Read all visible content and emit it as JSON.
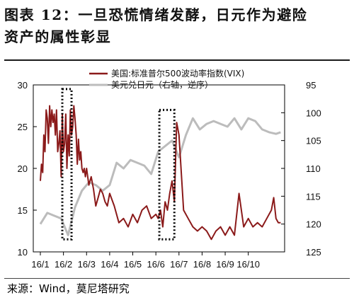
{
  "title": {
    "line1": "图表 12：一旦恐慌情绪发酵，日元作为避险",
    "line2": "资产的属性彰显"
  },
  "source": "来源：Wind，莫尼塔研究",
  "chart_data": {
    "type": "line",
    "x_tick_labels": [
      "16/1",
      "16/2",
      "16/3",
      "16/4",
      "16/5",
      "16/6",
      "16/7",
      "16/8",
      "16/9",
      "16/10"
    ],
    "y_left": {
      "ticks": [
        10,
        15,
        20,
        25,
        30
      ],
      "range": [
        10,
        30
      ]
    },
    "y_right": {
      "ticks": [
        95,
        100,
        105,
        110,
        115,
        120,
        125
      ],
      "range": [
        95,
        125
      ],
      "reversed": true
    },
    "series": [
      {
        "name": "美国:标准普尔500波动率指数(VIX)",
        "axis": "left",
        "color": "#8b1a1a",
        "x": [
          0,
          0.05,
          0.1,
          0.15,
          0.2,
          0.25,
          0.3,
          0.35,
          0.4,
          0.45,
          0.5,
          0.55,
          0.6,
          0.65,
          0.7,
          0.75,
          0.8,
          0.85,
          0.9,
          0.95,
          1,
          1.05,
          1.1,
          1.15,
          1.2,
          1.25,
          1.3,
          1.35,
          1.4,
          1.45,
          1.5,
          1.55,
          1.6,
          1.65,
          1.7,
          1.75,
          1.8,
          1.85,
          1.9,
          1.95,
          2,
          2.1,
          2.2,
          2.3,
          2.4,
          2.5,
          2.6,
          2.7,
          2.8,
          2.9,
          3,
          3.2,
          3.4,
          3.6,
          3.8,
          4,
          4.2,
          4.4,
          4.6,
          4.8,
          5,
          5.1,
          5.2,
          5.3,
          5.4,
          5.5,
          5.6,
          5.7,
          5.8,
          5.9,
          6,
          6.2,
          6.4,
          6.6,
          6.8,
          7,
          7.2,
          7.4,
          7.6,
          7.8,
          8,
          8.2,
          8.4,
          8.6,
          8.8,
          9,
          9.2,
          9.4,
          9.6,
          9.8,
          10,
          10.1,
          10.2,
          10.3,
          10.4
        ],
        "y": [
          18.5,
          20.5,
          19.5,
          24,
          22,
          27,
          26,
          23,
          27.5,
          25,
          27,
          25.5,
          26.5,
          24,
          27,
          22,
          23,
          24.5,
          19,
          26.5,
          22,
          23,
          26.5,
          20,
          24,
          21.5,
          27,
          24,
          25,
          27.5,
          26,
          24,
          20.5,
          23.5,
          21,
          22,
          20,
          19.5,
          20,
          19,
          20,
          18,
          19,
          17.5,
          15.5,
          16.5,
          17.5,
          17,
          16,
          15.5,
          17,
          15.5,
          13.5,
          14,
          13,
          14.5,
          13.5,
          15,
          15.5,
          14,
          14.5,
          14,
          15,
          13,
          16,
          15,
          17,
          18.5,
          16,
          25.5,
          24,
          15,
          14,
          13,
          12.5,
          13,
          12.5,
          11.5,
          12.5,
          13,
          12,
          13,
          12,
          17,
          13,
          14,
          13,
          13.5,
          13,
          14,
          15,
          16.5,
          14,
          13.5,
          13.5
        ],
        "y_approx_peaks": {
          "16/2": 28.5,
          "16/6": 26
        }
      },
      {
        "name": "美元兑日元（右轴，逆序）",
        "axis": "right",
        "color": "#bcbcbc",
        "x": [
          0,
          0.3,
          0.6,
          0.9,
          1.2,
          1.5,
          1.8,
          2.1,
          2.4,
          2.7,
          3,
          3.3,
          3.6,
          3.9,
          4.2,
          4.5,
          4.8,
          5.1,
          5.4,
          5.7,
          6,
          6.3,
          6.6,
          6.9,
          7.2,
          7.5,
          7.8,
          8.1,
          8.4,
          8.7,
          9,
          9.3,
          9.6,
          9.9,
          10.2,
          10.4
        ],
        "y": [
          120,
          118,
          118.5,
          119,
          122,
          117,
          114,
          112.5,
          113,
          114,
          113,
          109,
          110,
          108.5,
          109,
          109.5,
          111,
          107,
          106,
          105,
          108,
          104,
          101,
          103,
          102,
          101.5,
          102,
          102.5,
          101,
          103,
          101,
          101.5,
          103,
          103.5,
          103.8,
          103.5
        ]
      }
    ],
    "annotations": [
      {
        "type": "dotted-box",
        "x_from": 0.95,
        "x_to": 1.35,
        "y_from_left": 11.5,
        "y_to_left": 29.5
      },
      {
        "type": "dotted-box",
        "x_from": 5.15,
        "x_to": 5.8,
        "y_from_left": 11.5,
        "y_to_left": 27.0
      }
    ],
    "legend_position": "top-right"
  }
}
